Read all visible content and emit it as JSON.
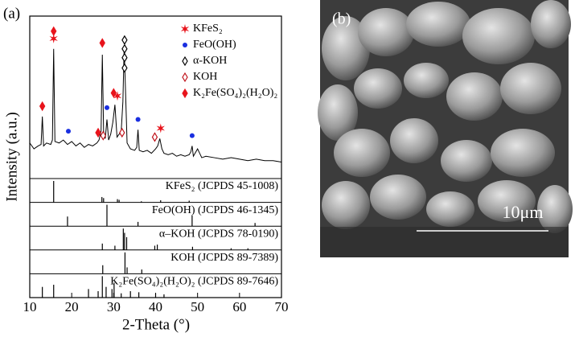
{
  "chart_data": {
    "type": "line",
    "panel_label": "(a)",
    "x_label": "2-Theta (°)",
    "y_label": "Intensity (a.u.)",
    "xlim": [
      10,
      70
    ],
    "xticks": [
      10,
      20,
      30,
      40,
      50,
      60,
      70
    ],
    "ylim": [
      0,
      105
    ],
    "x": [
      10,
      11,
      12,
      12.7,
      13.0,
      13.3,
      14,
      15,
      15.4,
      15.7,
      16.0,
      17,
      18,
      19,
      20,
      21,
      22,
      23,
      24,
      25,
      26,
      26.5,
      27.0,
      27.3,
      27.6,
      28.0,
      28.4,
      28.8,
      29.3,
      29.8,
      30.3,
      30.8,
      31.3,
      31.8,
      32.2,
      32.5,
      32.8,
      33.2,
      34,
      35,
      35.5,
      35.8,
      36.1,
      37,
      38,
      39,
      40,
      40.5,
      41.0,
      41.5,
      42,
      43,
      44,
      45,
      46,
      47,
      48,
      48.4,
      48.7,
      49,
      50,
      51,
      52,
      54,
      56,
      58,
      60,
      62,
      64,
      66,
      68,
      70
    ],
    "series": [
      {
        "color": "#000000",
        "values": [
          22,
          18,
          20,
          21,
          40,
          20,
          22,
          21,
          24,
          86,
          23,
          22,
          24,
          21,
          23,
          20,
          22,
          19,
          21,
          20,
          22,
          24,
          30,
          82,
          30,
          25,
          38,
          24,
          28,
          36,
          48,
          26,
          28,
          30,
          50,
          87,
          60,
          22,
          18,
          17,
          19,
          31,
          17,
          16,
          17,
          15,
          18,
          20,
          25,
          18,
          15,
          14,
          15,
          13,
          14,
          13,
          14,
          16,
          20,
          13,
          18,
          12,
          13,
          12,
          11,
          12,
          11,
          10,
          11,
          10,
          10,
          9
        ]
      }
    ],
    "markers": [
      {
        "name": "KFeS₂",
        "color": "#e8141c",
        "shape": "star",
        "x": [
          15.7,
          30.9,
          41.2
        ],
        "y": [
          93,
          54,
          32
        ]
      },
      {
        "name": "FeO(OH)",
        "color": "#1a2fe0",
        "shape": "circle",
        "x": [
          19.2,
          28.4,
          35.8,
          48.7
        ],
        "y": [
          30,
          46,
          38,
          27
        ]
      },
      {
        "name": "α-KOH",
        "color": "#000000",
        "shape": "open-diamond",
        "x": [
          32.6,
          32.6,
          32.6,
          32.6
        ],
        "y": [
          92,
          86,
          80,
          73
        ]
      },
      {
        "name": "KOH",
        "color": "#c0141c",
        "shape": "open-diamond",
        "x": [
          27.5,
          32.0,
          39.8
        ],
        "y": [
          27,
          29,
          26
        ]
      },
      {
        "name": "K₂Fe(SO₄)₂(H₂O)₂",
        "color": "#e8141c",
        "shape": "diamond",
        "x": [
          13.0,
          15.7,
          26.3,
          27.3,
          30.0
        ],
        "y": [
          47,
          98,
          29,
          90,
          56
        ]
      }
    ],
    "ref_ylim": [
      0,
      100
    ],
    "references": [
      {
        "label": "KFeS₂ (JCPDS 45-1008)",
        "x": [
          15.7,
          27.2,
          27.6,
          30.9,
          31.3,
          36.6,
          41.2,
          48.0
        ],
        "values": [
          100,
          25,
          20,
          15,
          12,
          5,
          10,
          8
        ]
      },
      {
        "label": "FeO(OH) (JCPDS 46-1345)",
        "x": [
          19.0,
          28.4,
          35.8,
          48.7,
          63.7
        ],
        "values": [
          45,
          100,
          20,
          50,
          15
        ]
      },
      {
        "label": "α–KOH (JCPDS 78-0190)",
        "x": [
          27.3,
          30.3,
          32.3,
          32.6,
          33.1,
          39.8,
          40.4,
          48.8,
          58.0,
          62.0
        ],
        "values": [
          30,
          20,
          100,
          80,
          60,
          20,
          25,
          15,
          8,
          8
        ]
      },
      {
        "label": "KOH (JCPDS 89-7389)",
        "x": [
          27.4,
          32.7,
          33.2,
          36.7
        ],
        "values": [
          40,
          100,
          30,
          20
        ]
      },
      {
        "label": "K₂Fe(SO₄)₂(H₂O)₂ (JCPDS 89-7646)",
        "x": [
          13.0,
          15.7,
          24.0,
          26.3,
          27.3,
          28.2,
          29.6,
          30.1,
          31.8,
          34.0,
          36.0,
          40.0,
          42.0
        ],
        "values": [
          50,
          60,
          40,
          30,
          100,
          50,
          40,
          70,
          20,
          30,
          25,
          20,
          15
        ]
      }
    ]
  },
  "image_panel": {
    "label": "(b)",
    "scale_bar": "10μm"
  }
}
